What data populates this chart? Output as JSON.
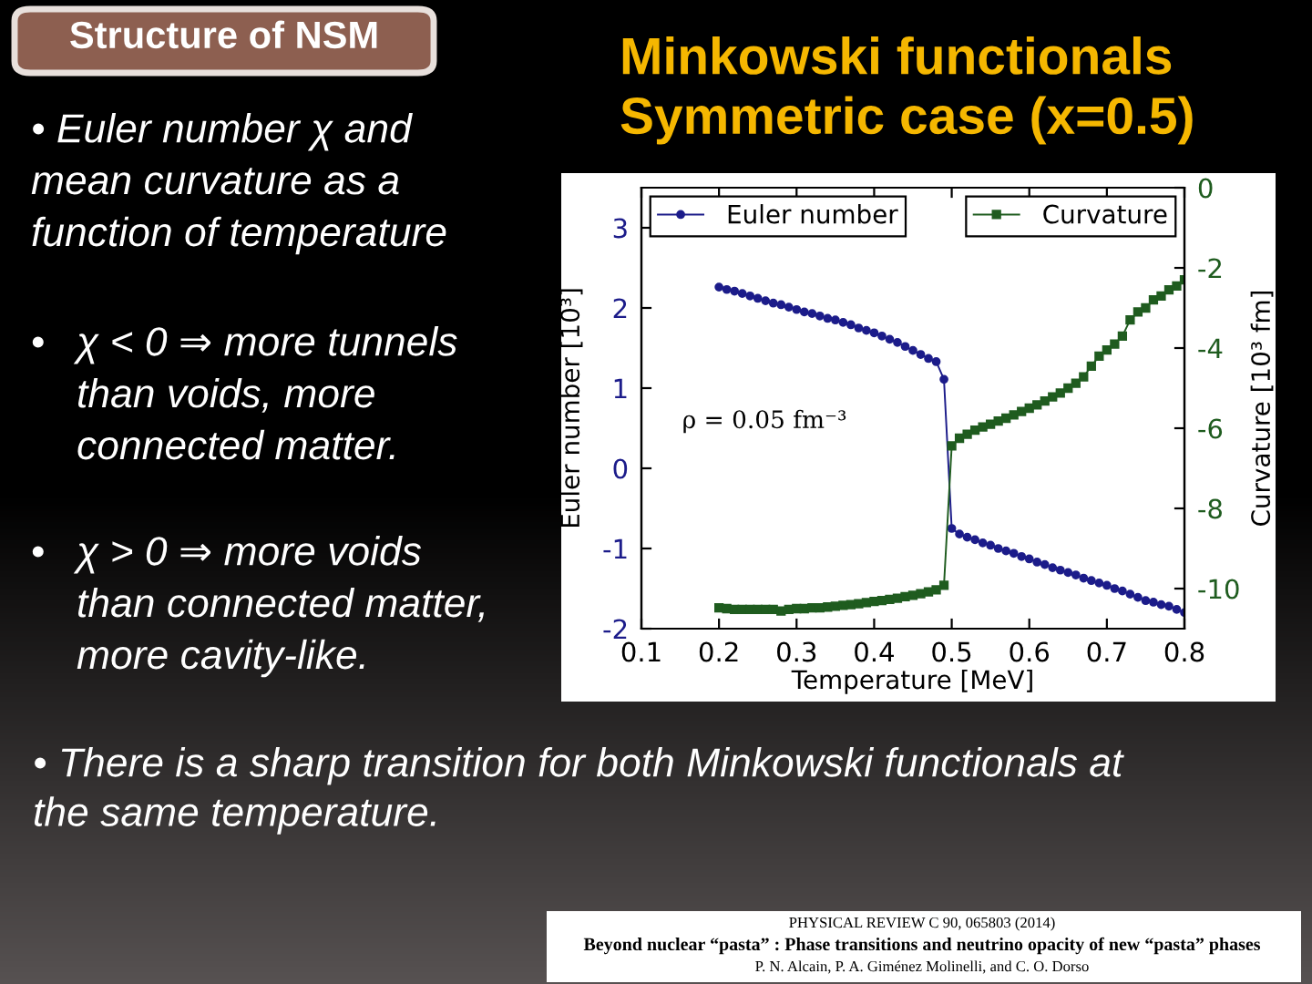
{
  "chart_data": {
    "type": "line",
    "title": "Minkowski functionals\nSymmetric case (x=0.5)",
    "xlabel": "Temperature [MeV]",
    "ylabel": "Euler number [10³]",
    "y2label": "Curvature [10³ fm]",
    "x": [
      0.2,
      0.21,
      0.22,
      0.23,
      0.24,
      0.25,
      0.26,
      0.27,
      0.28,
      0.29,
      0.3,
      0.31,
      0.32,
      0.33,
      0.34,
      0.35,
      0.36,
      0.37,
      0.38,
      0.39,
      0.4,
      0.41,
      0.42,
      0.43,
      0.44,
      0.45,
      0.46,
      0.47,
      0.48,
      0.49,
      0.5,
      0.51,
      0.52,
      0.53,
      0.54,
      0.55,
      0.56,
      0.57,
      0.58,
      0.59,
      0.6,
      0.61,
      0.62,
      0.63,
      0.64,
      0.65,
      0.66,
      0.67,
      0.68,
      0.69,
      0.7,
      0.71,
      0.72,
      0.73,
      0.74,
      0.75,
      0.76,
      0.77,
      0.78,
      0.79,
      0.8
    ],
    "series": [
      {
        "name": "Euler number",
        "color": "#1c1c8a",
        "marker": "circle",
        "axis": "y",
        "values": [
          2.26,
          2.23,
          2.21,
          2.18,
          2.15,
          2.12,
          2.09,
          2.06,
          2.04,
          2.01,
          1.98,
          1.95,
          1.93,
          1.9,
          1.87,
          1.85,
          1.82,
          1.79,
          1.75,
          1.72,
          1.69,
          1.65,
          1.61,
          1.57,
          1.52,
          1.47,
          1.42,
          1.37,
          1.33,
          1.11,
          -0.75,
          -0.82,
          -0.86,
          -0.89,
          -0.93,
          -0.96,
          -1.0,
          -1.03,
          -1.06,
          -1.1,
          -1.13,
          -1.17,
          -1.2,
          -1.24,
          -1.27,
          -1.3,
          -1.33,
          -1.37,
          -1.4,
          -1.43,
          -1.46,
          -1.5,
          -1.53,
          -1.57,
          -1.61,
          -1.65,
          -1.67,
          -1.7,
          -1.72,
          -1.76,
          -1.8
        ]
      },
      {
        "name": "Curvature",
        "color": "#1f5c1f",
        "marker": "square",
        "axis": "y2",
        "values": [
          -10.48,
          -10.5,
          -10.52,
          -10.52,
          -10.52,
          -10.52,
          -10.52,
          -10.52,
          -10.56,
          -10.52,
          -10.5,
          -10.5,
          -10.48,
          -10.48,
          -10.46,
          -10.44,
          -10.42,
          -10.4,
          -10.38,
          -10.35,
          -10.32,
          -10.3,
          -10.27,
          -10.24,
          -10.2,
          -10.17,
          -10.13,
          -10.08,
          -10.03,
          -9.92,
          -6.44,
          -6.25,
          -6.15,
          -6.05,
          -5.97,
          -5.9,
          -5.82,
          -5.75,
          -5.67,
          -5.58,
          -5.5,
          -5.42,
          -5.32,
          -5.22,
          -5.12,
          -5.0,
          -4.88,
          -4.72,
          -4.45,
          -4.2,
          -4.05,
          -3.9,
          -3.7,
          -3.3,
          -3.1,
          -3.0,
          -2.8,
          -2.7,
          -2.55,
          -2.45,
          -2.3
        ]
      }
    ],
    "xlim": [
      0.1,
      0.8
    ],
    "xticks": [
      0.1,
      0.2,
      0.3,
      0.4,
      0.5,
      0.6,
      0.7,
      0.8
    ],
    "ylim": [
      -2,
      3.5
    ],
    "yticks": [
      -2,
      -1,
      0,
      1,
      2,
      3
    ],
    "y2lim": [
      -11,
      0
    ],
    "y2ticks": [
      0,
      -2,
      -4,
      -6,
      -8,
      -10
    ],
    "legend": "top",
    "annotations": [
      "Structure of NSM",
      "• Euler number χ and\nmean curvature as a\nfunction of temperature",
      "•",
      "χ < 0 ⇒ more tunnels\nthan voids, more\nconnected matter.",
      "•",
      "χ > 0 ⇒ more voids\nthan connected matter,\nmore cavity-like.",
      "ρ = 0.05 fm⁻³",
      "• There is a sharp transition for both Minkowski functionals at\nthe same temperature.",
      "PHYSICAL REVIEW C 90, 065803 (2014)",
      "Beyond nuclear “pasta” : Phase transitions and neutrino opacity of new “pasta” phases",
      "P. N. Alcain, P. A. Giménez Molinelli, and C. O. Dorso"
    ]
  }
}
